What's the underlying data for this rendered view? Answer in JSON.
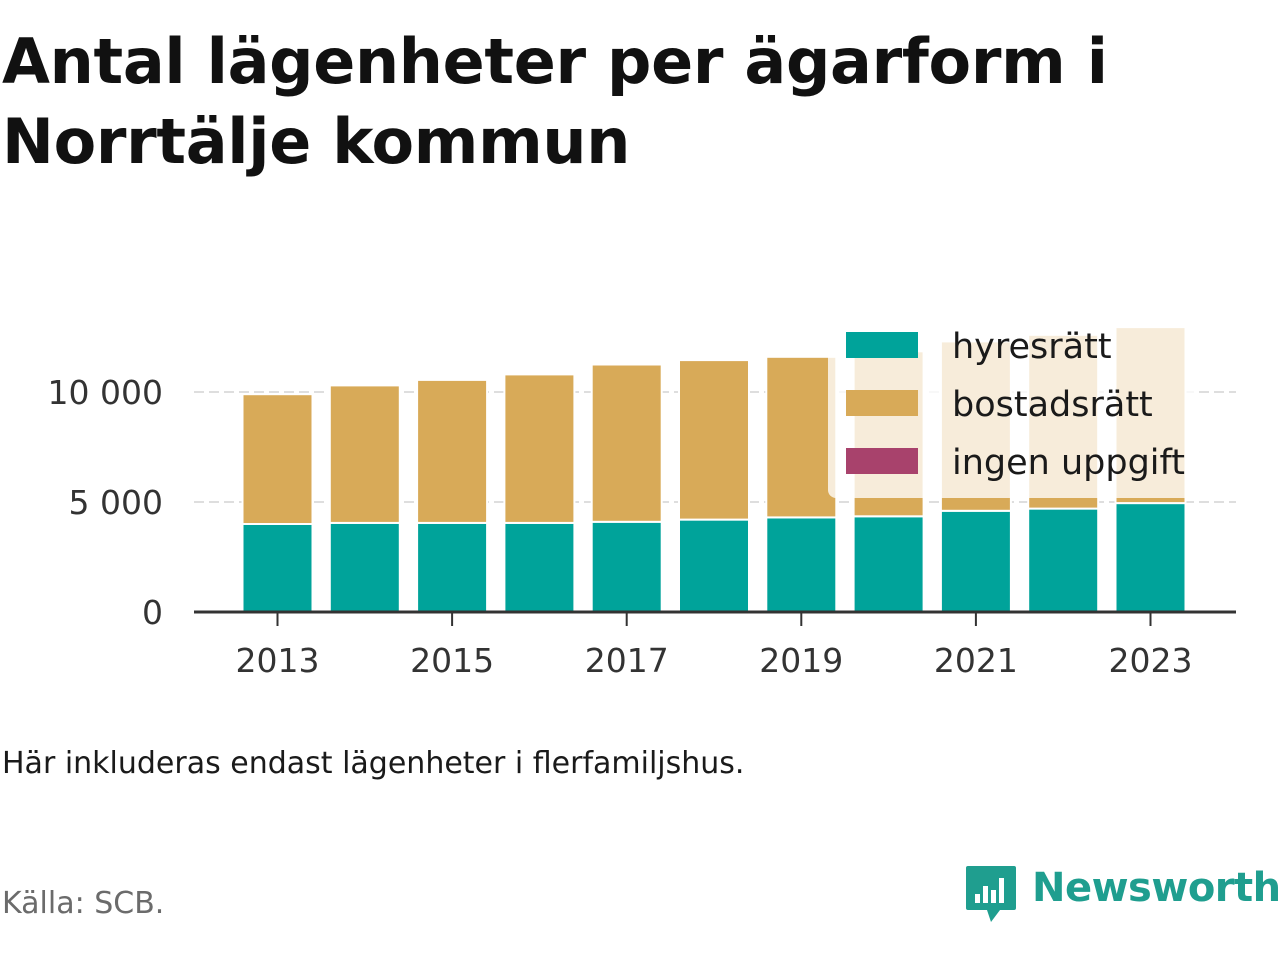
{
  "title": "Antal lägenheter per ägarform i Norrtälje kommun",
  "note": "Här inkluderas endast lägenheter i flerfamiljshus.",
  "source": "Källa: SCB.",
  "brand": {
    "name": "Newsworthy",
    "icon": "newsworthy-logo-icon",
    "color": "#1f9e8f"
  },
  "chart_data": {
    "type": "bar",
    "stacked": true,
    "title": "",
    "xlabel": "",
    "ylabel": "",
    "categories": [
      "2013",
      "2014",
      "2015",
      "2016",
      "2017",
      "2018",
      "2019",
      "2020",
      "2021",
      "2022",
      "2023"
    ],
    "x_tick_labels": [
      "2013",
      "2015",
      "2017",
      "2019",
      "2021",
      "2023"
    ],
    "y_ticks": [
      {
        "value": 0,
        "label": "0"
      },
      {
        "value": 5000,
        "label": "5 000"
      },
      {
        "value": 10000,
        "label": "10 000"
      }
    ],
    "ylim": [
      0,
      13000
    ],
    "grid": true,
    "legend_position": "top-right",
    "series": [
      {
        "name": "hyresrätt",
        "color": "#00a39a",
        "values": [
          4000,
          4050,
          4050,
          4050,
          4100,
          4200,
          4300,
          4350,
          4600,
          4700,
          4950
        ]
      },
      {
        "name": "bostadsrätt",
        "color": "#d8aa58",
        "values": [
          5900,
          6250,
          6500,
          6750,
          7150,
          7250,
          7300,
          7500,
          7700,
          7900,
          8000
        ]
      },
      {
        "name": "ingen uppgift",
        "color": "#a8426c",
        "values": [
          0,
          0,
          0,
          0,
          0,
          0,
          0,
          0,
          0,
          0,
          0
        ]
      }
    ]
  }
}
